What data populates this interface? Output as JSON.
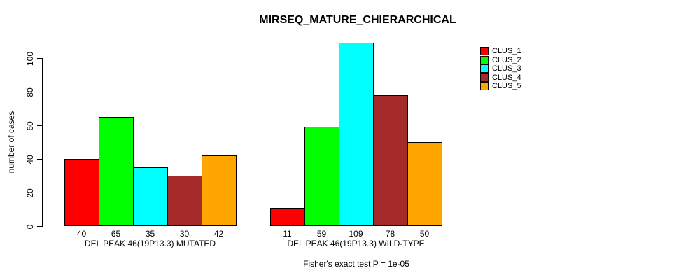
{
  "title": "MIRSEQ_MATURE_CHIERARCHICAL",
  "footer": "Fisher's exact test P = 1e-05",
  "y_axis": {
    "label": "number of cases",
    "ticks": [
      0,
      20,
      40,
      60,
      80,
      100
    ]
  },
  "legend": {
    "position": "top-right",
    "items": [
      {
        "label": "CLUS_1",
        "color": "#FF0000"
      },
      {
        "label": "CLUS_2",
        "color": "#00FF00"
      },
      {
        "label": "CLUS_3",
        "color": "#00FFFF"
      },
      {
        "label": "CLUS_4",
        "color": "#A52A2A"
      },
      {
        "label": "CLUS_5",
        "color": "#FFA500"
      }
    ]
  },
  "chart_data": {
    "type": "bar",
    "title": "MIRSEQ_MATURE_CHIERARCHICAL",
    "xlabel": "",
    "ylabel": "number of cases",
    "ylim": [
      0,
      110
    ],
    "yticks": [
      0,
      20,
      40,
      60,
      80,
      100
    ],
    "grid": false,
    "legend_position": "top-right",
    "categories": [
      "DEL PEAK 46(19P13.3) MUTATED",
      "DEL PEAK 46(19P13.3) WILD-TYPE"
    ],
    "series": [
      {
        "name": "CLUS_1",
        "color": "#FF0000",
        "values": [
          40,
          11
        ]
      },
      {
        "name": "CLUS_2",
        "color": "#00FF00",
        "values": [
          65,
          59
        ]
      },
      {
        "name": "CLUS_3",
        "color": "#00FFFF",
        "values": [
          35,
          109
        ]
      },
      {
        "name": "CLUS_4",
        "color": "#A52A2A",
        "values": [
          30,
          78
        ]
      },
      {
        "name": "CLUS_5",
        "color": "#FFA500",
        "values": [
          42,
          50
        ]
      }
    ],
    "bar_value_labels": true,
    "annotation": "Fisher's exact test P = 1e-05"
  }
}
